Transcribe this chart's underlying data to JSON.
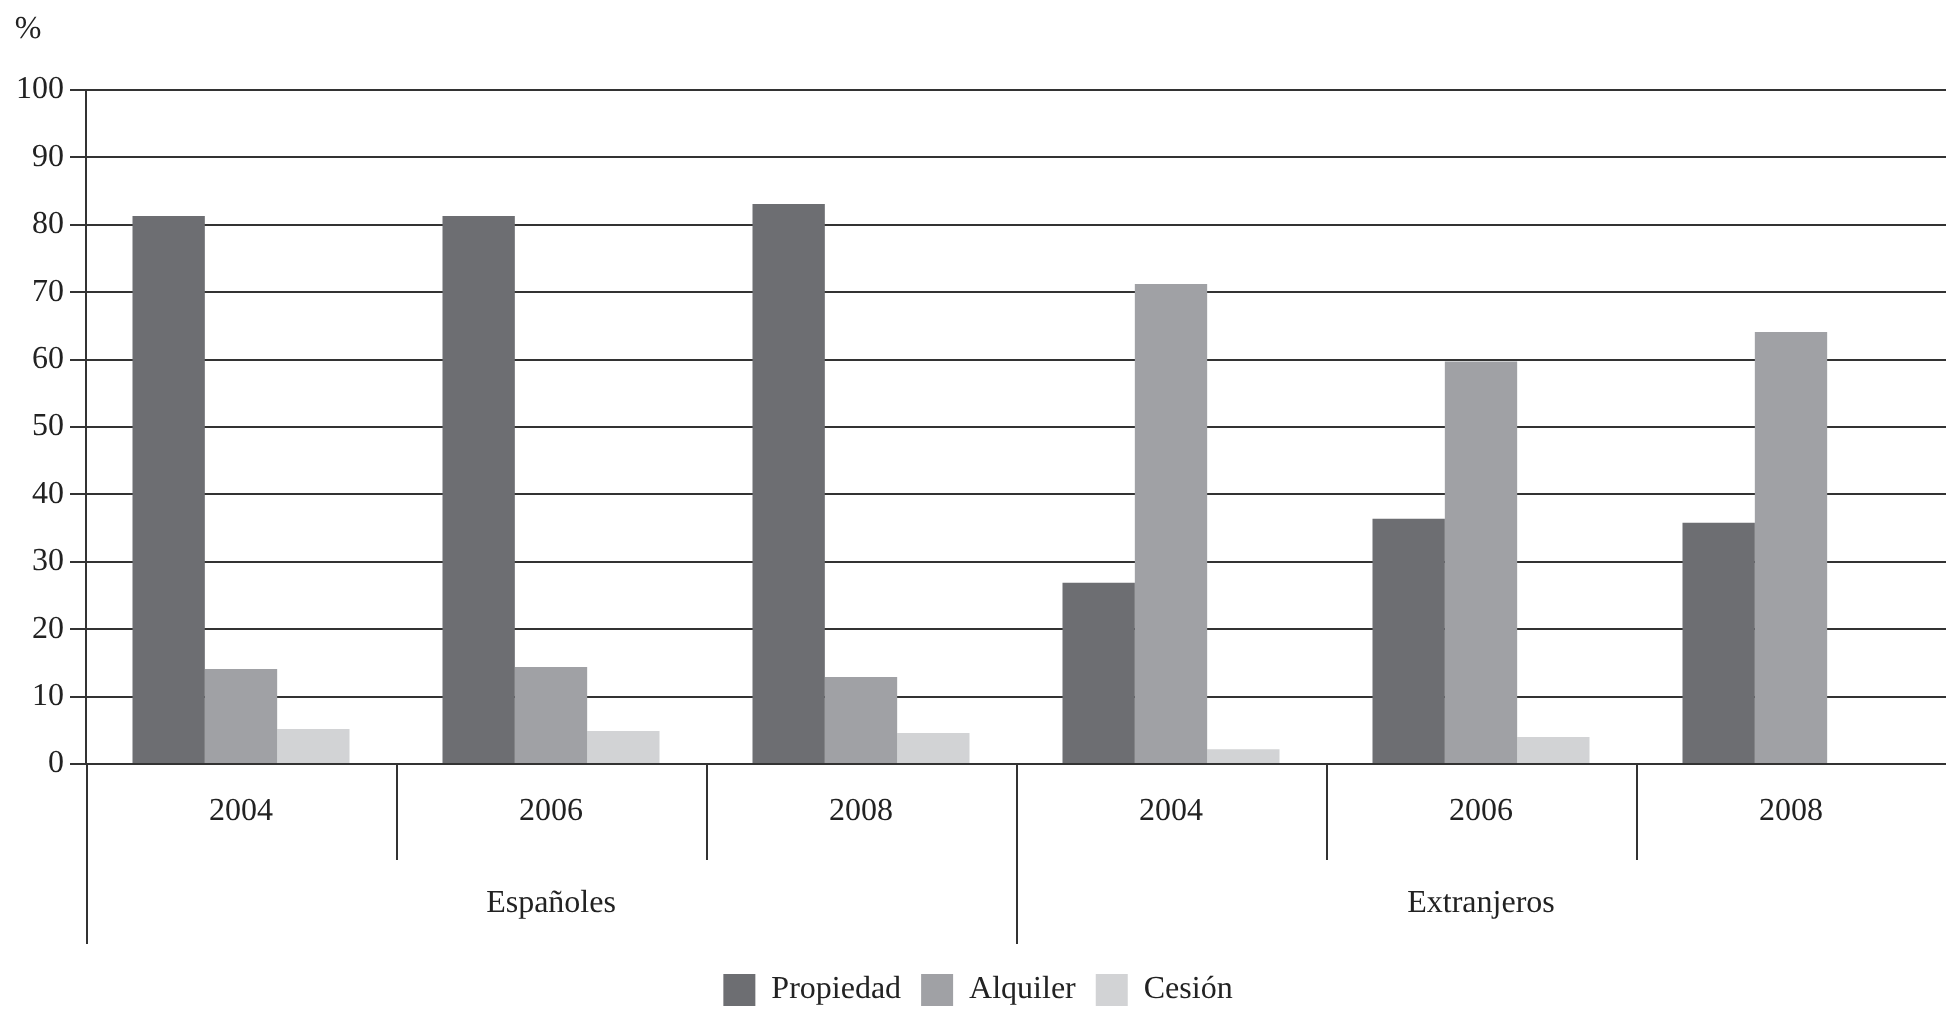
{
  "chart_data": {
    "type": "bar",
    "ylabel": "%",
    "categories": [
      "2004",
      "2006",
      "2008",
      "2004",
      "2006",
      "2008"
    ],
    "series": [
      {
        "name": "Propiedad",
        "color": "#6d6e72",
        "values": [
          81.3,
          81.3,
          83.1,
          26.9,
          36.4,
          35.8
        ]
      },
      {
        "name": "Alquiler",
        "color": "#a0a1a5",
        "values": [
          14.1,
          14.4,
          12.9,
          71.2,
          59.7,
          64.1
        ]
      },
      {
        "name": "Cesión",
        "color": "#d2d3d5",
        "values": [
          5.2,
          4.9,
          4.6,
          2.2,
          4.0,
          null
        ]
      }
    ],
    "annotations": [
      "Españoles",
      "Extranjeros"
    ],
    "ylim": [
      0,
      100
    ],
    "yticks": [
      0,
      10,
      20,
      30,
      40,
      50,
      60,
      70,
      80,
      90,
      100
    ],
    "grid": "y",
    "legend": "bottom"
  }
}
